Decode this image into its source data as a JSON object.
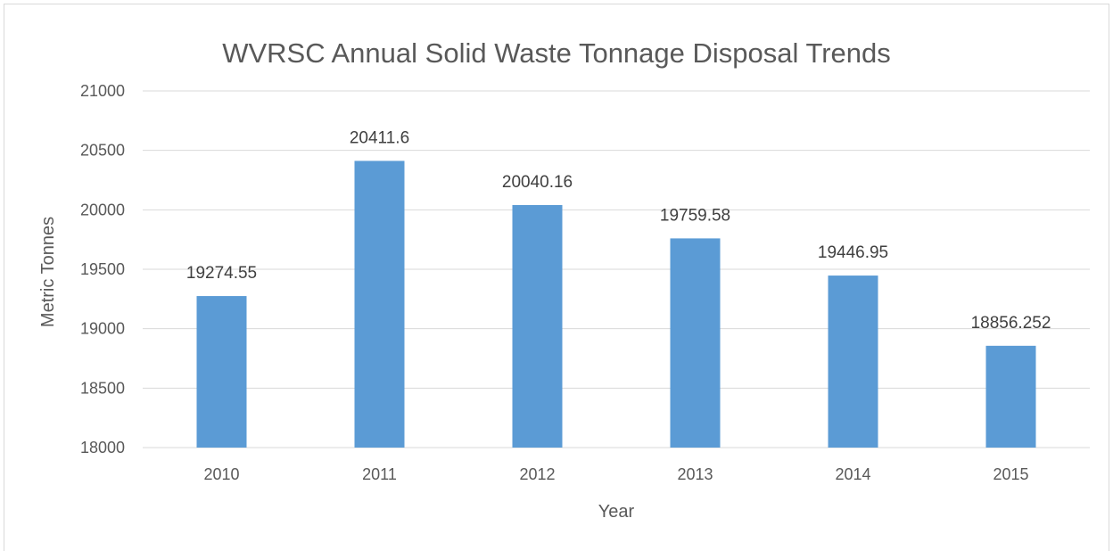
{
  "chart_data": {
    "type": "bar",
    "title": "WVRSC Annual Solid Waste Tonnage Disposal Trends",
    "xlabel": "Year",
    "ylabel": "Metric Tonnes",
    "categories": [
      "2010",
      "2011",
      "2012",
      "2013",
      "2014",
      "2015"
    ],
    "values": [
      19274.55,
      20411.6,
      20040.16,
      19759.58,
      19446.95,
      18856.252
    ],
    "data_labels": [
      "19274.55",
      "20411.6",
      "20040.16",
      "19759.58",
      "19446.95",
      "18856.252"
    ],
    "ylim": [
      18000,
      21000
    ],
    "yticks": [
      "18000",
      "18500",
      "19000",
      "19500",
      "20000",
      "20500",
      "21000"
    ],
    "grid": true,
    "legend": "none",
    "colors": {
      "bar": "#5b9bd5",
      "grid": "#d9d9d9",
      "text": "#595959"
    }
  }
}
